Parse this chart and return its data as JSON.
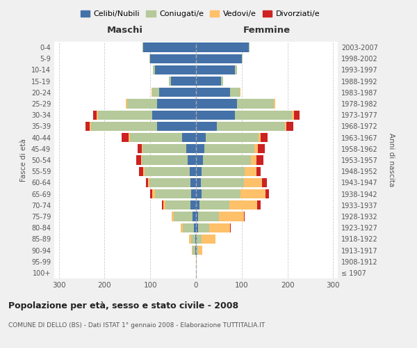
{
  "age_groups": [
    "100+",
    "95-99",
    "90-94",
    "85-89",
    "80-84",
    "75-79",
    "70-74",
    "65-69",
    "60-64",
    "55-59",
    "50-54",
    "45-49",
    "40-44",
    "35-39",
    "30-34",
    "25-29",
    "20-24",
    "15-19",
    "10-14",
    "5-9",
    "0-4"
  ],
  "birth_years": [
    "≤ 1907",
    "1908-1912",
    "1913-1917",
    "1918-1922",
    "1923-1927",
    "1928-1932",
    "1933-1937",
    "1938-1942",
    "1943-1947",
    "1948-1952",
    "1953-1957",
    "1958-1962",
    "1963-1967",
    "1968-1972",
    "1973-1977",
    "1978-1982",
    "1983-1987",
    "1988-1992",
    "1993-1997",
    "1998-2002",
    "2003-2007"
  ],
  "male": {
    "celibi": [
      0,
      0,
      2,
      2,
      4,
      8,
      12,
      10,
      12,
      13,
      18,
      22,
      30,
      85,
      95,
      85,
      80,
      55,
      90,
      100,
      115
    ],
    "coniugati": [
      0,
      0,
      5,
      8,
      25,
      40,
      55,
      80,
      90,
      100,
      100,
      95,
      115,
      145,
      120,
      65,
      15,
      5,
      4,
      2,
      2
    ],
    "vedovi": [
      0,
      0,
      2,
      5,
      5,
      5,
      5,
      5,
      3,
      2,
      2,
      2,
      2,
      2,
      2,
      4,
      2,
      0,
      0,
      0,
      0
    ],
    "divorziati": [
      0,
      0,
      0,
      0,
      0,
      0,
      2,
      5,
      5,
      10,
      10,
      8,
      15,
      10,
      8,
      0,
      0,
      0,
      0,
      0,
      0
    ]
  },
  "female": {
    "nubili": [
      0,
      0,
      1,
      2,
      4,
      5,
      8,
      12,
      10,
      12,
      15,
      18,
      22,
      45,
      85,
      90,
      75,
      55,
      85,
      100,
      115
    ],
    "coniugate": [
      0,
      0,
      4,
      10,
      25,
      45,
      65,
      85,
      95,
      95,
      105,
      110,
      115,
      150,
      125,
      80,
      20,
      5,
      4,
      2,
      2
    ],
    "vedove": [
      0,
      1,
      8,
      30,
      45,
      55,
      60,
      55,
      40,
      25,
      12,
      8,
      5,
      3,
      4,
      3,
      2,
      0,
      0,
      0,
      0
    ],
    "divorziate": [
      0,
      0,
      0,
      0,
      2,
      2,
      8,
      8,
      10,
      10,
      15,
      15,
      15,
      15,
      12,
      0,
      0,
      0,
      0,
      0,
      0
    ]
  },
  "colors": {
    "celibi": "#4472a8",
    "coniugati": "#b5c99a",
    "vedovi": "#ffc06a",
    "divorziati": "#cc2222"
  },
  "xlim": 310,
  "title": "Popolazione per età, sesso e stato civile - 2008",
  "subtitle": "COMUNE DI DELLO (BS) - Dati ISTAT 1° gennaio 2008 - Elaborazione TUTTITALIA.IT",
  "ylabel_left": "Fasce di età",
  "ylabel_right": "Anni di nascita",
  "legend_labels": [
    "Celibi/Nubili",
    "Coniugati/e",
    "Vedovi/e",
    "Divorziati/e"
  ],
  "maschi_label": "Maschi",
  "femmine_label": "Femmine",
  "bg_color": "#f0f0f0",
  "plot_bg_color": "#ffffff"
}
